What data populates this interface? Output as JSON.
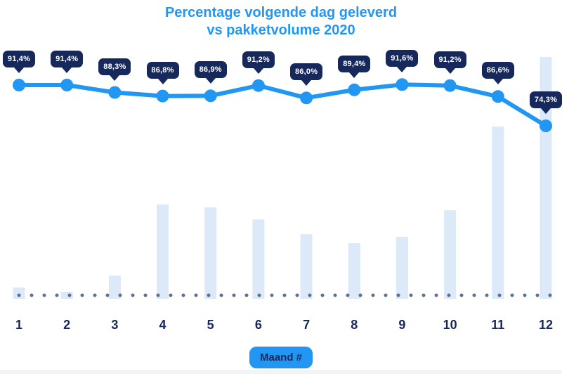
{
  "title": {
    "line1": "Percentage volgende dag geleverd",
    "line2": "vs pakketvolume 2020"
  },
  "x_axis": {
    "label": "Maand #",
    "ticks": [
      "1",
      "2",
      "3",
      "4",
      "5",
      "6",
      "7",
      "8",
      "9",
      "10",
      "11",
      "12"
    ]
  },
  "colors": {
    "accent_blue": "#2196f3",
    "navy": "#17285c",
    "bar_fill": "#dbe9f8",
    "dot_gray": "#5f7090",
    "footer_bg": "#f2f4f8",
    "footer_border": "#e7eaf0"
  },
  "chart_data": {
    "type": "line+bar",
    "title": "Percentage volgende dag geleverd vs pakketvolume 2020",
    "xlabel": "Maand #",
    "categories": [
      1,
      2,
      3,
      4,
      5,
      6,
      7,
      8,
      9,
      10,
      11,
      12
    ],
    "legend": "none",
    "grid": false,
    "baseline_style": "dotted",
    "series": [
      {
        "name": "Percentage volgende dag geleverd",
        "type": "line",
        "unit": "%",
        "values": [
          91.4,
          91.4,
          88.3,
          86.8,
          86.9,
          91.2,
          86.0,
          89.4,
          91.6,
          91.2,
          86.6,
          74.3
        ],
        "labels": [
          "91,4%",
          "91,4%",
          "88,3%",
          "86,8%",
          "86,9%",
          "91,2%",
          "86,0%",
          "89,4%",
          "91,6%",
          "91,2%",
          "86,6%",
          "74,3%"
        ]
      },
      {
        "name": "pakketvolume 2020",
        "type": "bar",
        "unit": "relative_to_max_100 (no value axis shown, estimated from bar heights)",
        "values": [
          4.7,
          2.9,
          9.6,
          39.0,
          37.8,
          32.8,
          26.7,
          23.0,
          25.6,
          36.6,
          71.2,
          100.0
        ]
      }
    ]
  }
}
